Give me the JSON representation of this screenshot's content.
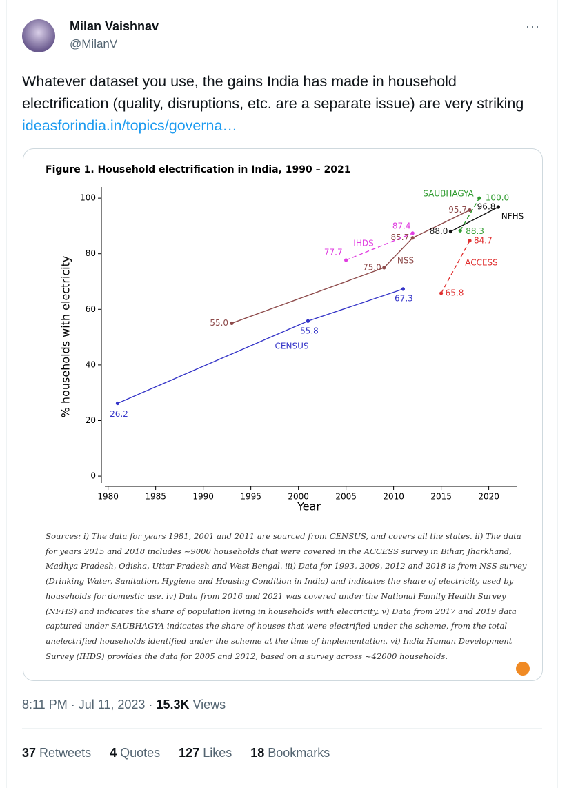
{
  "author": {
    "name": "Milan Vaishnav",
    "handle": "@MilanV"
  },
  "tweet": {
    "text": "Whatever dataset you use, the gains India has made in household electrification (quality, disruptions, etc. are a separate issue) are very striking ",
    "link": "ideasforindia.in/topics/governa…"
  },
  "chart_data": {
    "type": "line",
    "title": "Figure 1. Household electrification in India, 1990 – 2021",
    "x_label": "Year",
    "y_label": "% households with electricity",
    "xlim": [
      1979.3,
      2023
    ],
    "xticks": [
      1980,
      1985,
      1990,
      1995,
      2000,
      2005,
      2010,
      2015,
      2020
    ],
    "ylim": [
      -3.7,
      104
    ],
    "yticks": [
      0,
      20,
      40,
      60,
      80,
      100
    ],
    "series": [
      {
        "name": "CENSUS",
        "color": "#3535c8",
        "dashed": false,
        "x": [
          1981,
          2001,
          2011
        ],
        "values": [
          26.2,
          55.8,
          67.3
        ],
        "value_labels": [
          "26.2",
          "55.8",
          "67.3"
        ]
      },
      {
        "name": "NSS",
        "color": "#8e4b4b",
        "dashed": false,
        "x": [
          1993,
          2009,
          2012,
          2018
        ],
        "values": [
          55,
          75,
          85.7,
          95.7
        ],
        "value_labels": [
          "55.0",
          "75.0",
          "85.7",
          "95.7"
        ]
      },
      {
        "name": "IHDS",
        "color": "#e03ee0",
        "dashed": true,
        "x": [
          2005,
          2012
        ],
        "values": [
          77.7,
          87.4
        ],
        "value_labels": [
          "77.7",
          "87.4"
        ]
      },
      {
        "name": "ACCESS",
        "color": "#e03030",
        "dashed": true,
        "x": [
          2015,
          2018
        ],
        "values": [
          65.8,
          84.7
        ],
        "value_labels": [
          "65.8",
          "84.7"
        ]
      },
      {
        "name": "NFHS",
        "color": "#111111",
        "dashed": false,
        "x": [
          2016,
          2021
        ],
        "values": [
          88,
          96.8
        ],
        "value_labels": [
          "88.0",
          "96.8"
        ]
      },
      {
        "name": "SAUBHAGYA",
        "color": "#2e9b2e",
        "dashed": true,
        "x": [
          2017,
          2019
        ],
        "values": [
          88.3,
          100
        ],
        "value_labels": [
          "88.3",
          "100.0"
        ]
      }
    ],
    "sources": "Sources: i) The data for years 1981, 2001 and 2011 are sourced from CENSUS, and covers all the states. ii) The data for years 2015 and 2018 includes ~9000 households that were covered in the ACCESS survey in Bihar, Jharkhand, Madhya Pradesh, Odisha, Uttar Pradesh and West Bengal. iii) Data for 1993, 2009, 2012 and 2018 is from NSS survey (Drinking Water, Sanitation, Hygiene and Housing Condition in India) and indicates the share of electricity used by households for domestic use. iv) Data from 2016 and 2021 was covered under the National Family Health Survey (NFHS) and indicates the share of population living in households with electricity. v) Data from 2017 and 2019 data captured under SAUBHAGYA indicates the share of houses that were electrified under the scheme, from the total unelectrified households identified under the scheme at the time of implementation. vi) India Human Development Survey (IHDS) provides the data for 2005 and 2012, based on a survey across ~42000 households."
  },
  "meta": {
    "time": "8:11 PM · Jul 11, 2023 · ",
    "views": "15.3K",
    "views_label": " Views"
  },
  "stats": [
    {
      "count": 37,
      "label": " Retweets"
    },
    {
      "count": 4,
      "label": " Quotes"
    },
    {
      "count": 127,
      "label": " Likes"
    },
    {
      "count": 18,
      "label": " Bookmarks"
    }
  ]
}
